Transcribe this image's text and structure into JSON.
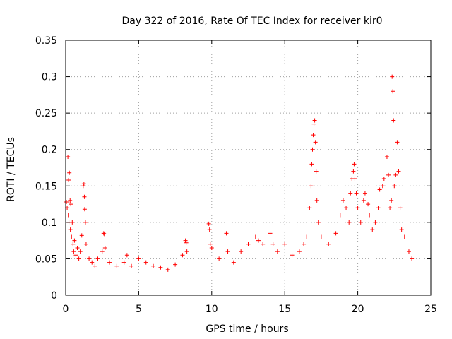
{
  "chart_data": {
    "type": "scatter",
    "title": "Day 322 of 2016, Rate Of TEC Index for receiver kir0",
    "xlabel": "GPS time / hours",
    "ylabel": "ROTI / TECUs",
    "xlim": [
      0,
      25
    ],
    "ylim": [
      0,
      0.35
    ],
    "xticks": [
      0,
      5,
      10,
      15,
      20,
      25
    ],
    "xtick_labels": [
      "0",
      "5",
      "10",
      "15",
      "20",
      "25"
    ],
    "yticks": [
      0,
      0.05,
      0.1,
      0.15,
      0.2,
      0.25,
      0.3,
      0.35
    ],
    "ytick_labels": [
      "0",
      "0.05",
      "0.1",
      "0.15",
      "0.2",
      "0.25",
      "0.3",
      "0.35"
    ],
    "grid": true,
    "marker": "+",
    "marker_color": "#ff0000",
    "series": [
      {
        "name": "ROTI",
        "points": [
          [
            0.05,
            0.128
          ],
          [
            0.1,
            0.12
          ],
          [
            0.15,
            0.19
          ],
          [
            0.18,
            0.11
          ],
          [
            0.2,
            0.158
          ],
          [
            0.22,
            0.1
          ],
          [
            0.25,
            0.168
          ],
          [
            0.3,
            0.13
          ],
          [
            0.32,
            0.09
          ],
          [
            0.35,
            0.125
          ],
          [
            0.4,
            0.08
          ],
          [
            0.45,
            0.1
          ],
          [
            0.5,
            0.07
          ],
          [
            0.55,
            0.06
          ],
          [
            0.6,
            0.075
          ],
          [
            0.7,
            0.055
          ],
          [
            0.8,
            0.065
          ],
          [
            0.9,
            0.05
          ],
          [
            1.0,
            0.06
          ],
          [
            1.1,
            0.082
          ],
          [
            1.2,
            0.15
          ],
          [
            1.25,
            0.153
          ],
          [
            1.28,
            0.135
          ],
          [
            1.3,
            0.118
          ],
          [
            1.35,
            0.1
          ],
          [
            1.4,
            0.07
          ],
          [
            1.6,
            0.05
          ],
          [
            1.8,
            0.045
          ],
          [
            2.0,
            0.04
          ],
          [
            2.2,
            0.05
          ],
          [
            2.5,
            0.06
          ],
          [
            2.6,
            0.085
          ],
          [
            2.65,
            0.084
          ],
          [
            2.7,
            0.065
          ],
          [
            3.0,
            0.045
          ],
          [
            3.5,
            0.04
          ],
          [
            4.0,
            0.045
          ],
          [
            4.2,
            0.055
          ],
          [
            4.5,
            0.04
          ],
          [
            5.0,
            0.05
          ],
          [
            5.5,
            0.045
          ],
          [
            6.0,
            0.04
          ],
          [
            6.5,
            0.038
          ],
          [
            7.0,
            0.035
          ],
          [
            7.5,
            0.042
          ],
          [
            8.0,
            0.055
          ],
          [
            8.2,
            0.075
          ],
          [
            8.25,
            0.072
          ],
          [
            8.3,
            0.06
          ],
          [
            9.8,
            0.098
          ],
          [
            9.85,
            0.09
          ],
          [
            9.9,
            0.07
          ],
          [
            10.0,
            0.065
          ],
          [
            10.5,
            0.05
          ],
          [
            11.0,
            0.085
          ],
          [
            11.1,
            0.06
          ],
          [
            11.5,
            0.045
          ],
          [
            12.0,
            0.06
          ],
          [
            12.5,
            0.07
          ],
          [
            13.0,
            0.08
          ],
          [
            13.2,
            0.075
          ],
          [
            13.5,
            0.07
          ],
          [
            14.0,
            0.085
          ],
          [
            14.2,
            0.07
          ],
          [
            14.5,
            0.06
          ],
          [
            15.0,
            0.07
          ],
          [
            15.5,
            0.055
          ],
          [
            16.0,
            0.06
          ],
          [
            16.3,
            0.07
          ],
          [
            16.5,
            0.08
          ],
          [
            16.7,
            0.12
          ],
          [
            16.8,
            0.15
          ],
          [
            16.85,
            0.18
          ],
          [
            16.9,
            0.2
          ],
          [
            16.95,
            0.22
          ],
          [
            17.0,
            0.235
          ],
          [
            17.05,
            0.24
          ],
          [
            17.1,
            0.21
          ],
          [
            17.15,
            0.17
          ],
          [
            17.2,
            0.13
          ],
          [
            17.3,
            0.1
          ],
          [
            17.5,
            0.08
          ],
          [
            18.0,
            0.07
          ],
          [
            18.5,
            0.085
          ],
          [
            18.8,
            0.11
          ],
          [
            19.0,
            0.13
          ],
          [
            19.2,
            0.12
          ],
          [
            19.4,
            0.1
          ],
          [
            19.5,
            0.14
          ],
          [
            19.6,
            0.16
          ],
          [
            19.7,
            0.17
          ],
          [
            19.75,
            0.18
          ],
          [
            19.8,
            0.16
          ],
          [
            19.9,
            0.14
          ],
          [
            20.0,
            0.12
          ],
          [
            20.2,
            0.1
          ],
          [
            20.4,
            0.13
          ],
          [
            20.5,
            0.14
          ],
          [
            20.7,
            0.125
          ],
          [
            20.8,
            0.11
          ],
          [
            21.0,
            0.09
          ],
          [
            21.2,
            0.1
          ],
          [
            21.4,
            0.12
          ],
          [
            21.5,
            0.145
          ],
          [
            21.7,
            0.15
          ],
          [
            21.8,
            0.16
          ],
          [
            22.0,
            0.19
          ],
          [
            22.1,
            0.165
          ],
          [
            22.2,
            0.12
          ],
          [
            22.3,
            0.13
          ],
          [
            22.35,
            0.3
          ],
          [
            22.4,
            0.28
          ],
          [
            22.45,
            0.24
          ],
          [
            22.5,
            0.15
          ],
          [
            22.6,
            0.165
          ],
          [
            22.7,
            0.21
          ],
          [
            22.8,
            0.17
          ],
          [
            22.9,
            0.12
          ],
          [
            23.0,
            0.09
          ],
          [
            23.2,
            0.08
          ],
          [
            23.5,
            0.06
          ],
          [
            23.7,
            0.05
          ]
        ]
      }
    ]
  }
}
